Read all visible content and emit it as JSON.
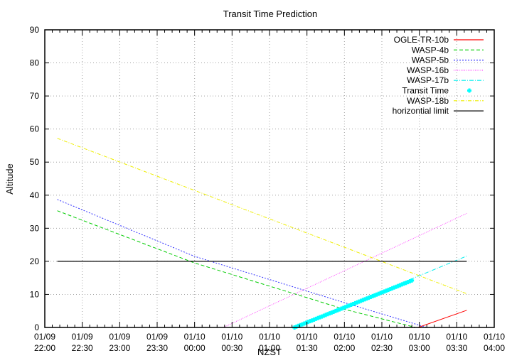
{
  "chart_data": {
    "type": "line",
    "title": "Transit Time Prediction",
    "xlabel": "NZST",
    "ylabel": "Altitude",
    "ylim": [
      0,
      90
    ],
    "yticks": [
      0,
      10,
      20,
      30,
      40,
      50,
      60,
      70,
      80,
      90
    ],
    "xlim_minutes": [
      0,
      360
    ],
    "x_origin": "01/09 22:00",
    "xticks": [
      {
        "min": 0,
        "date": "01/09",
        "time": "22:00"
      },
      {
        "min": 30,
        "date": "01/09",
        "time": "22:30"
      },
      {
        "min": 60,
        "date": "01/09",
        "time": "23:00"
      },
      {
        "min": 90,
        "date": "01/09",
        "time": "23:30"
      },
      {
        "min": 120,
        "date": "01/10",
        "time": "00:00"
      },
      {
        "min": 150,
        "date": "01/10",
        "time": "00:30"
      },
      {
        "min": 180,
        "date": "01/10",
        "time": "01:00"
      },
      {
        "min": 210,
        "date": "01/10",
        "time": "01:30"
      },
      {
        "min": 240,
        "date": "01/10",
        "time": "02:00"
      },
      {
        "min": 270,
        "date": "01/10",
        "time": "02:30"
      },
      {
        "min": 300,
        "date": "01/10",
        "time": "03:00"
      },
      {
        "min": 330,
        "date": "01/10",
        "time": "03:30"
      },
      {
        "min": 360,
        "date": "01/10",
        "time": "04:00"
      }
    ],
    "grid": true,
    "legend_position": "top-right",
    "series": [
      {
        "name": "OGLE-TR-10b",
        "color": "#ff0000",
        "dash": "",
        "points": [
          [
            299,
            0
          ],
          [
            338,
            5.2
          ]
        ]
      },
      {
        "name": "WASP-4b",
        "color": "#00cc00",
        "dash": "5,3",
        "points": [
          [
            10,
            35.3
          ],
          [
            120,
            19.5
          ],
          [
            240,
            5.5
          ],
          [
            297,
            0
          ]
        ]
      },
      {
        "name": "WASP-5b",
        "color": "#3333ff",
        "dash": "2,2",
        "points": [
          [
            10,
            38.7
          ],
          [
            120,
            21.5
          ],
          [
            240,
            7.5
          ],
          [
            306,
            0
          ]
        ]
      },
      {
        "name": "WASP-16b",
        "color": "#ff44ff",
        "dash": "1,1.5",
        "points": [
          [
            143,
            0
          ],
          [
            338,
            34.5
          ]
        ]
      },
      {
        "name": "WASP-17b",
        "color": "#00eeee",
        "dash": "6,2,1,2",
        "points": [
          [
            200,
            0
          ],
          [
            338,
            21.6
          ]
        ]
      },
      {
        "name": "WASP-18b",
        "color": "#eeee00",
        "dash": "5,2,1,2",
        "points": [
          [
            10,
            57.2
          ],
          [
            338,
            10.2
          ]
        ]
      },
      {
        "name": "horizontial limit",
        "color": "#000000",
        "dash": "",
        "points": [
          [
            10,
            20
          ],
          [
            338,
            20
          ]
        ]
      }
    ],
    "transit": {
      "name": "Transit Time",
      "color": "#00ffff",
      "start": [
        200,
        0
      ],
      "end": [
        294,
        14.2
      ]
    }
  }
}
